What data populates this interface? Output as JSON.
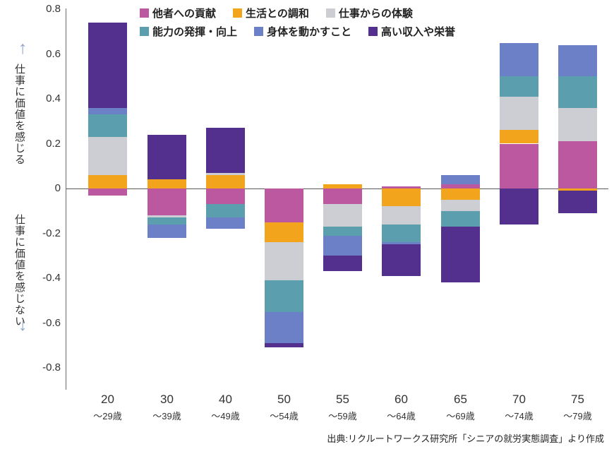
{
  "chart_data": {
    "type": "bar",
    "stacked": true,
    "title": "",
    "ylim": [
      -0.8,
      0.8
    ],
    "y_ticks": [
      "0.8",
      "0.6",
      "0.4",
      "0.2",
      "0",
      "-0.2",
      "-0.4",
      "-0.6",
      "-0.8"
    ],
    "categories": [
      {
        "label": "20",
        "sub": "〜29歳"
      },
      {
        "label": "30",
        "sub": "〜39歳"
      },
      {
        "label": "40",
        "sub": "〜49歳"
      },
      {
        "label": "50",
        "sub": "〜54歳"
      },
      {
        "label": "55",
        "sub": "〜59歳"
      },
      {
        "label": "60",
        "sub": "〜64歳"
      },
      {
        "label": "65",
        "sub": "〜69歳"
      },
      {
        "label": "70",
        "sub": "〜74歳"
      },
      {
        "label": "75",
        "sub": "〜79歳"
      }
    ],
    "series": [
      {
        "name": "他者への貢献",
        "color": "#bb589f",
        "values": [
          -0.03,
          -0.12,
          -0.07,
          -0.15,
          -0.07,
          0.01,
          0.02,
          0.2,
          0.21
        ]
      },
      {
        "name": "生活との調和",
        "color": "#f3a41d",
        "values": [
          0.06,
          0.04,
          0.06,
          -0.09,
          0.02,
          -0.08,
          -0.05,
          0.06,
          -0.01
        ]
      },
      {
        "name": "仕事からの体験",
        "color": "#cdced3",
        "values": [
          0.17,
          -0.01,
          0.01,
          -0.17,
          -0.1,
          -0.08,
          -0.05,
          0.15,
          0.15
        ]
      },
      {
        "name": "能力の発揮・向上",
        "color": "#5b9fae",
        "values": [
          0.1,
          -0.03,
          -0.06,
          -0.14,
          -0.04,
          -0.08,
          -0.07,
          0.09,
          0.14
        ]
      },
      {
        "name": "身体を動かすこと",
        "color": "#6b80c6",
        "values": [
          0.03,
          -0.06,
          -0.05,
          -0.14,
          -0.09,
          -0.01,
          0.04,
          0.15,
          0.14
        ]
      },
      {
        "name": "高い収入や栄誉",
        "color": "#53308e",
        "values": [
          0.38,
          0.2,
          0.2,
          -0.02,
          -0.07,
          -0.14,
          -0.25,
          -0.16,
          -0.1
        ]
      }
    ],
    "axis_label_positive": "仕事に価値を感じる",
    "axis_label_negative": "仕事に価値を感じない",
    "arrow_up": "↑",
    "arrow_down": "↓",
    "legend_position": "top",
    "grid": false,
    "source": "出典:リクルートワークス研究所「シニアの就労実態調査」より作成"
  }
}
